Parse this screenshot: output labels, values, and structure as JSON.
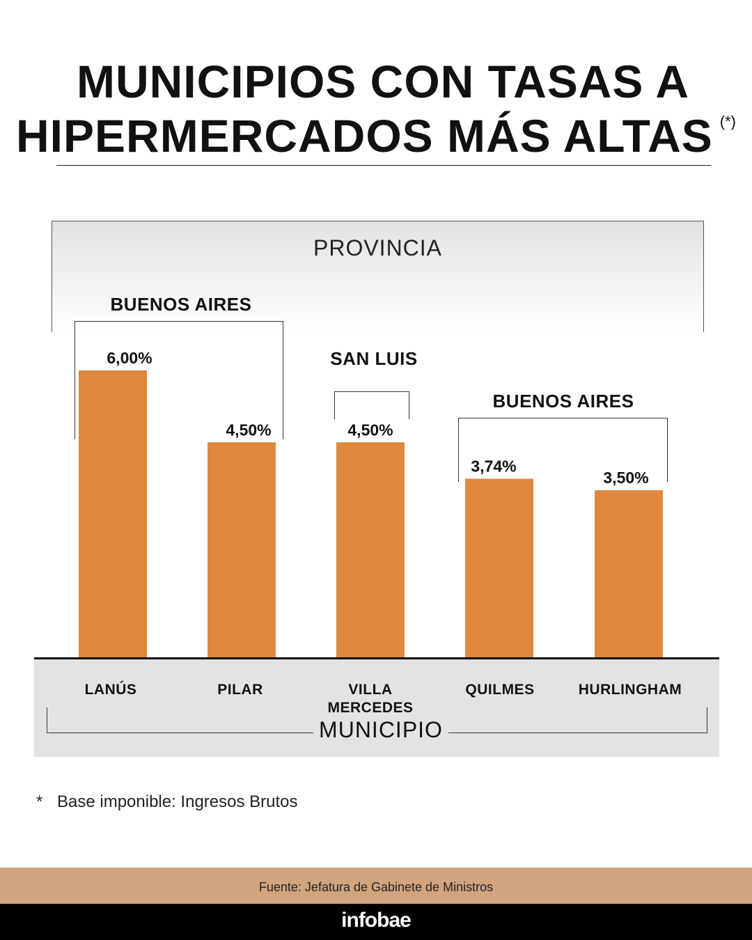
{
  "title_line1": "MUNICIPIOS CON TASAS A",
  "title_line2": "HIPERMERCADOS MÁS ALTAS",
  "title_note": "(*)",
  "province_header": "PROVINCIA",
  "groups": [
    "BUENOS AIRES",
    "SAN LUIS",
    "BUENOS AIRES"
  ],
  "axis_title": "MUNICIPIO",
  "footnote_mark": "*",
  "footnote": "Base imponible: Ingresos Brutos",
  "source": "Fuente: Jefatura de Gabinete de Ministros",
  "brand": "infobae",
  "colors": {
    "bar": "#de893e",
    "source_bar": "#d2a57f",
    "brand_bar": "#000000"
  },
  "chart_data": {
    "type": "bar",
    "categories": [
      "LANÚS",
      "PILAR",
      "VILLA MERCEDES",
      "QUILMES",
      "HURLINGHAM"
    ],
    "values": [
      6.0,
      4.5,
      4.5,
      3.74,
      3.5
    ],
    "value_labels": [
      "6,00%",
      "4,50%",
      "4,50%",
      "3,74%",
      "3,50%"
    ],
    "provinces": [
      "BUENOS AIRES",
      "BUENOS AIRES",
      "SAN LUIS",
      "BUENOS AIRES",
      "BUENOS AIRES"
    ],
    "title": "MUNICIPIOS CON TASAS A HIPERMERCADOS MÁS ALTAS",
    "xlabel": "MUNICIPIO",
    "ylabel": "",
    "ylim": [
      0,
      6
    ],
    "grid": false,
    "legend": "none"
  }
}
